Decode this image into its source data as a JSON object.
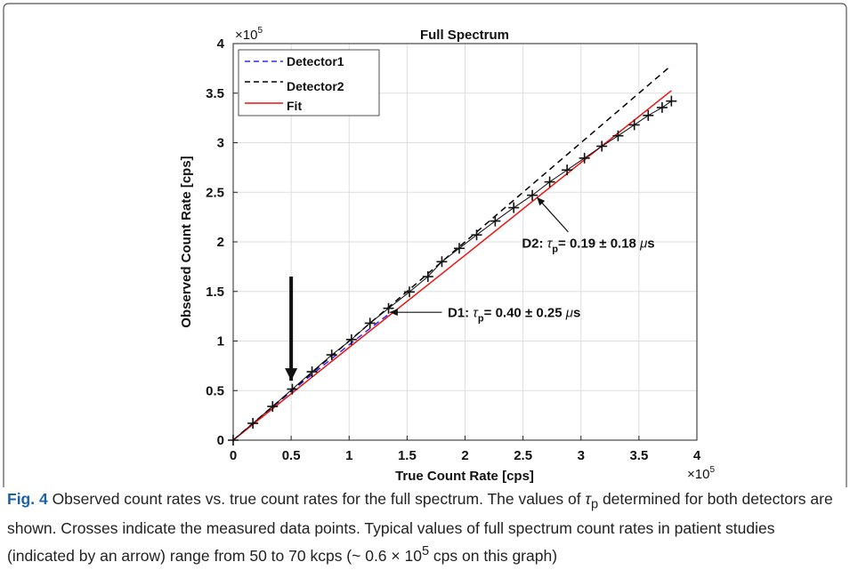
{
  "figure": {
    "label": "Fig. 4",
    "caption_parts": {
      "a": " Observed count rates vs. true count rates for the full spectrum. The values of ",
      "tau": "τ",
      "sub": "p",
      "b": " determined for both detectors are shown. Crosses indicate the measured data points. Typical values of full spectrum count rates in patient studies (indicated by an arrow) range from 50 to 70 kcps (~ 0.6 × 10",
      "sup": "5",
      "c": " cps on this graph)"
    }
  },
  "chart_data": {
    "type": "line",
    "title": "Full Spectrum",
    "xlabel": "True Count Rate [cps]",
    "ylabel": "Observed Count Rate [cps]",
    "xlim": [
      0,
      400000
    ],
    "ylim": [
      0,
      400000
    ],
    "xticks": [
      "0",
      "0.5",
      "1",
      "1.5",
      "2",
      "2.5",
      "3",
      "3.5",
      "4"
    ],
    "yticks": [
      "0",
      "0.5",
      "1",
      "1.5",
      "2",
      "2.5",
      "3",
      "3.5",
      "4"
    ],
    "x_multiplier_base": "×10",
    "x_multiplier_exp": "5",
    "y_multiplier_base": "×10",
    "y_multiplier_exp": "5",
    "grid": true,
    "legend_position": "top-left",
    "series": [
      {
        "name": "Detector1",
        "color": "#2b2bff",
        "style": "dashed",
        "x": [
          0,
          20000,
          40000,
          60000,
          80000,
          100000,
          120000,
          135000
        ],
        "y": [
          0,
          19800,
          39300,
          58600,
          77500,
          96200,
          114500,
          127900
        ]
      },
      {
        "name": "Detector2",
        "color": "#000000",
        "style": "dashed",
        "x": [
          0,
          50000,
          100000,
          150000,
          200000,
          250000,
          300000,
          350000,
          378000
        ],
        "y": [
          0,
          50000,
          100000,
          150000,
          200000,
          250000,
          300000,
          350000,
          378000
        ]
      },
      {
        "name": "Fit",
        "color": "#ee1111",
        "style": "solid",
        "x": [
          0,
          100000,
          200000,
          300000,
          378000
        ],
        "y": [
          0,
          93500,
          186500,
          280000,
          352500
        ]
      }
    ],
    "measured_points": {
      "marker": "cross",
      "x": [
        0,
        17000,
        34000,
        51000,
        68000,
        85000,
        102000,
        118000,
        134000,
        152000,
        168000,
        180000,
        195000,
        210000,
        226000,
        242000,
        258000,
        273000,
        288000,
        303000,
        318000,
        332000,
        346000,
        358000,
        370000,
        378000
      ],
      "y": [
        0,
        17000,
        34000,
        51500,
        69000,
        86000,
        101500,
        118000,
        133000,
        149500,
        165000,
        180000,
        193500,
        207000,
        221000,
        234500,
        247000,
        260500,
        272500,
        284500,
        296500,
        307000,
        318000,
        327500,
        335500,
        342000
      ]
    },
    "annotations": [
      {
        "id": "d1",
        "prefix": "D1: ",
        "tau": "τ",
        "sub": "p",
        "value": "= 0.40 ± 0.25 ",
        "unit_mu": "μ",
        "unit_s": "s",
        "arrow_from": [
          180000,
          129000
        ],
        "arrow_to": [
          135000,
          129000
        ],
        "text_at": [
          185000,
          124000
        ]
      },
      {
        "id": "d2",
        "prefix": "D2: ",
        "tau": "τ",
        "sub": "p",
        "value": "= 0.19 ± 0.18 ",
        "unit_mu": "μ",
        "unit_s": "s",
        "arrow_from": [
          289000,
          210000
        ],
        "arrow_to": [
          262000,
          245000
        ],
        "text_at": [
          249000,
          194000
        ]
      }
    ],
    "pointer_arrow": {
      "x": 50000,
      "y_from": 165000,
      "y_to": 60000
    }
  }
}
